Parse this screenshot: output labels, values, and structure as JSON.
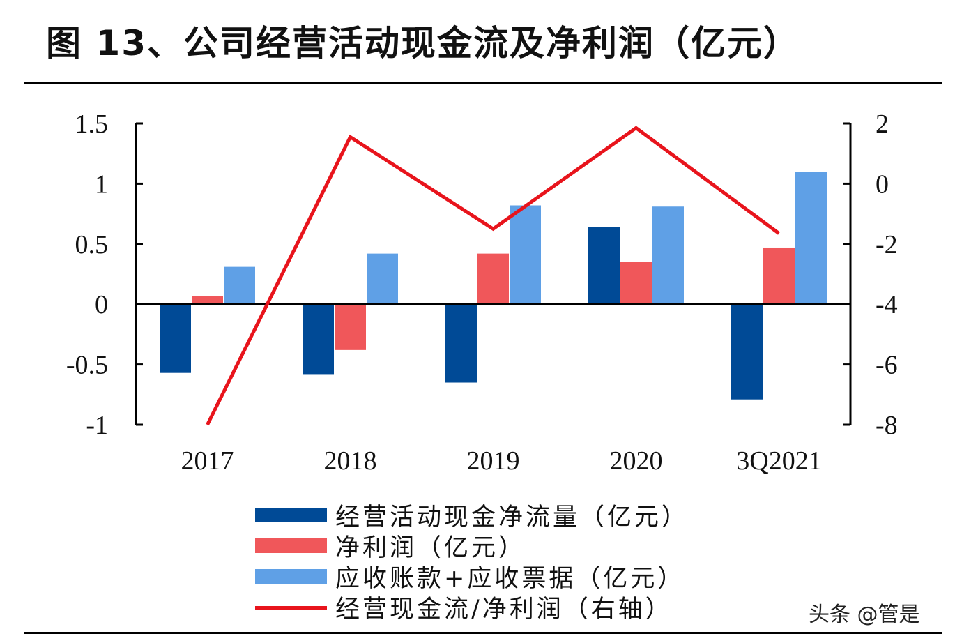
{
  "title": "图 13、公司经营活动现金流及净利润（亿元）",
  "watermark": "头条 @管是",
  "colors": {
    "ocf": "#004a96",
    "net_profit": "#f0575a",
    "receivables": "#5fa0e6",
    "ratio": "#e8141c"
  },
  "chart_data": {
    "type": "bar",
    "categories": [
      "2017",
      "2018",
      "2019",
      "2020",
      "3Q2021"
    ],
    "y_left": {
      "ticks": [
        "1.5",
        "1",
        "0.5",
        "0",
        "-0.5",
        "-1"
      ],
      "ylim": [
        -1,
        1.5
      ]
    },
    "y_right": {
      "ticks": [
        "2",
        "0",
        "-2",
        "-4",
        "-6",
        "-8"
      ],
      "ylim": [
        -8,
        2
      ]
    },
    "series": [
      {
        "name": "经营活动现金净流量（亿元）",
        "kind": "bar",
        "axis": "left",
        "values": [
          -0.57,
          -0.58,
          -0.65,
          0.64,
          -0.79
        ]
      },
      {
        "name": "净利润（亿元）",
        "kind": "bar",
        "axis": "left",
        "values": [
          0.07,
          -0.38,
          0.42,
          0.35,
          0.47
        ]
      },
      {
        "name": "应收账款+应收票据（亿元）",
        "kind": "bar",
        "axis": "left",
        "values": [
          0.31,
          0.42,
          0.82,
          0.81,
          1.1
        ]
      },
      {
        "name": "经营现金流/净利润（右轴）",
        "kind": "line",
        "axis": "right",
        "values": [
          -8.0,
          1.55,
          -1.5,
          1.85,
          -1.65
        ]
      }
    ],
    "grid": false,
    "legend_position": "bottom"
  }
}
